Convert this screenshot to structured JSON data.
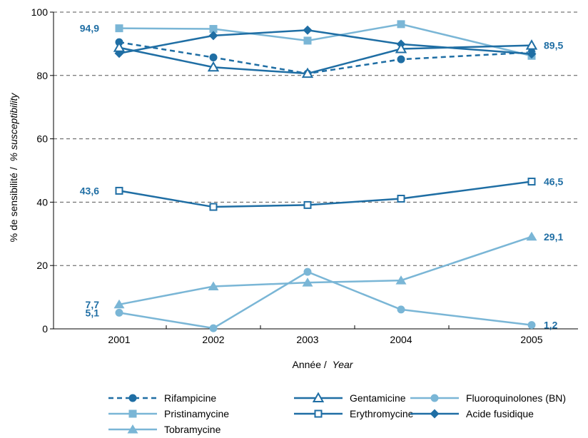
{
  "chart_data": {
    "type": "line",
    "ylabel_fr": "% de sensibilité /",
    "ylabel_en": "% susceptibility",
    "xlabel_fr": "Année /",
    "xlabel_en": "Year",
    "x": [
      "2001",
      "2002",
      "2003",
      "2004",
      "2005"
    ],
    "ylim": [
      0,
      100
    ],
    "yticks": [
      "0",
      "20",
      "40",
      "60",
      "80",
      "100"
    ],
    "grid": "horizontal-dashed",
    "legend_position": "bottom",
    "series": [
      {
        "name": "Rifampicine",
        "color": "#1f6ea4",
        "marker": "circle",
        "dash": true,
        "values": [
          90.5,
          85.7,
          80.6,
          85.1,
          87.3
        ]
      },
      {
        "name": "Pristinamycine",
        "color": "#7ab6d6",
        "marker": "square",
        "dash": false,
        "values": [
          94.9,
          94.7,
          91.0,
          96.2,
          86.2
        ]
      },
      {
        "name": "Acide fusidique",
        "color": "#1f6ea4",
        "marker": "diamond",
        "dash": false,
        "values": [
          87.0,
          92.6,
          94.3,
          89.9,
          86.8
        ]
      },
      {
        "name": "Gentamicine",
        "color": "#1f6ea4",
        "marker": "triangle-open",
        "dash": false,
        "values": [
          88.8,
          82.6,
          80.6,
          88.4,
          89.5
        ]
      },
      {
        "name": "Erythromycine",
        "color": "#1f6ea4",
        "marker": "square-open",
        "dash": false,
        "values": [
          43.6,
          38.5,
          39.1,
          41.1,
          46.5
        ]
      },
      {
        "name": "Tobramycine",
        "color": "#7ab6d6",
        "marker": "triangle",
        "dash": false,
        "values": [
          7.7,
          13.4,
          14.6,
          15.3,
          29.1
        ]
      },
      {
        "name": "Fluoroquinolones (BN)",
        "color": "#7ab6d6",
        "marker": "circle",
        "dash": false,
        "values": [
          5.1,
          0.2,
          18.0,
          6.1,
          1.2
        ]
      }
    ],
    "annotations": [
      {
        "text": "94,9",
        "series": 1,
        "point": 0,
        "side": "left"
      },
      {
        "text": "43,6",
        "series": 4,
        "point": 0,
        "side": "left"
      },
      {
        "text": "7,7",
        "series": 5,
        "point": 0,
        "side": "left"
      },
      {
        "text": "5,1",
        "series": 6,
        "point": 0,
        "side": "left"
      },
      {
        "text": "89,5",
        "series": 3,
        "point": 4,
        "side": "right"
      },
      {
        "text": "46,5",
        "series": 4,
        "point": 4,
        "side": "right"
      },
      {
        "text": "29,1",
        "series": 5,
        "point": 4,
        "side": "right"
      },
      {
        "text": "1,2",
        "series": 6,
        "point": 4,
        "side": "right"
      }
    ],
    "legend_order": [
      0,
      3,
      6,
      1,
      4,
      2,
      5
    ]
  }
}
